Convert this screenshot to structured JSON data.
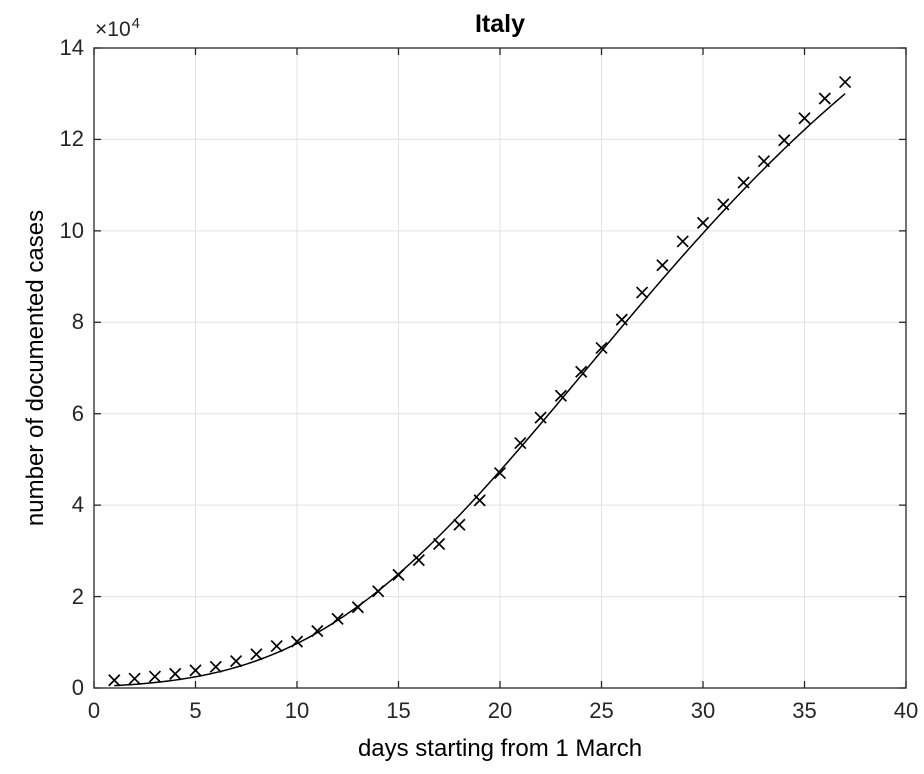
{
  "figure": {
    "title": "Italy",
    "xlabel": "days starting from 1 March",
    "ylabel": "number of documented cases",
    "y_multiplier_base": "×10",
    "y_multiplier_exp": "4"
  },
  "chart_data": {
    "type": "line",
    "title": "Italy",
    "xlabel": "days starting from 1 March",
    "ylabel": "number of documented cases",
    "xlim": [
      0,
      40
    ],
    "ylim": [
      0,
      140000
    ],
    "xticks": [
      0,
      5,
      10,
      15,
      20,
      25,
      30,
      35,
      40
    ],
    "yticks": [
      0,
      2,
      4,
      6,
      8,
      10,
      12,
      14
    ],
    "ytick_scale": 10000,
    "y_axis_multiplier_label": "×10^4",
    "grid": true,
    "legend": "none",
    "series": [
      {
        "name": "documented cases",
        "marker": "x",
        "line": "none",
        "x": [
          1,
          2,
          3,
          4,
          5,
          6,
          7,
          8,
          9,
          10,
          11,
          12,
          13,
          14,
          15,
          16,
          17,
          18,
          19,
          20,
          21,
          22,
          23,
          24,
          25,
          26,
          27,
          28,
          29,
          30,
          31,
          32,
          33,
          34,
          35,
          36,
          37
        ],
        "y": [
          1694,
          2036,
          2502,
          3089,
          3858,
          4636,
          5883,
          7375,
          9172,
          10149,
          12462,
          15113,
          17660,
          21157,
          24747,
          27980,
          31506,
          35713,
          41035,
          47021,
          53578,
          59138,
          63927,
          69176,
          74386,
          80589,
          86498,
          92472,
          97689,
          101739,
          105792,
          110574,
          115242,
          119827,
          124632,
          128948,
          132547
        ]
      },
      {
        "name": "fitted curve",
        "marker": "none",
        "line": "solid",
        "fit": {
          "model": "gompertz",
          "L": 190000,
          "b": 6.369,
          "c": 0.07623,
          "t_start": 1,
          "t_end": 37,
          "step": 0.25
        }
      }
    ],
    "colors": {
      "data": "#000000",
      "curve": "#000000",
      "grid": "#e0e0e0",
      "axis": "#262626",
      "title_text": "#000000",
      "tick_text": "#262626"
    }
  }
}
